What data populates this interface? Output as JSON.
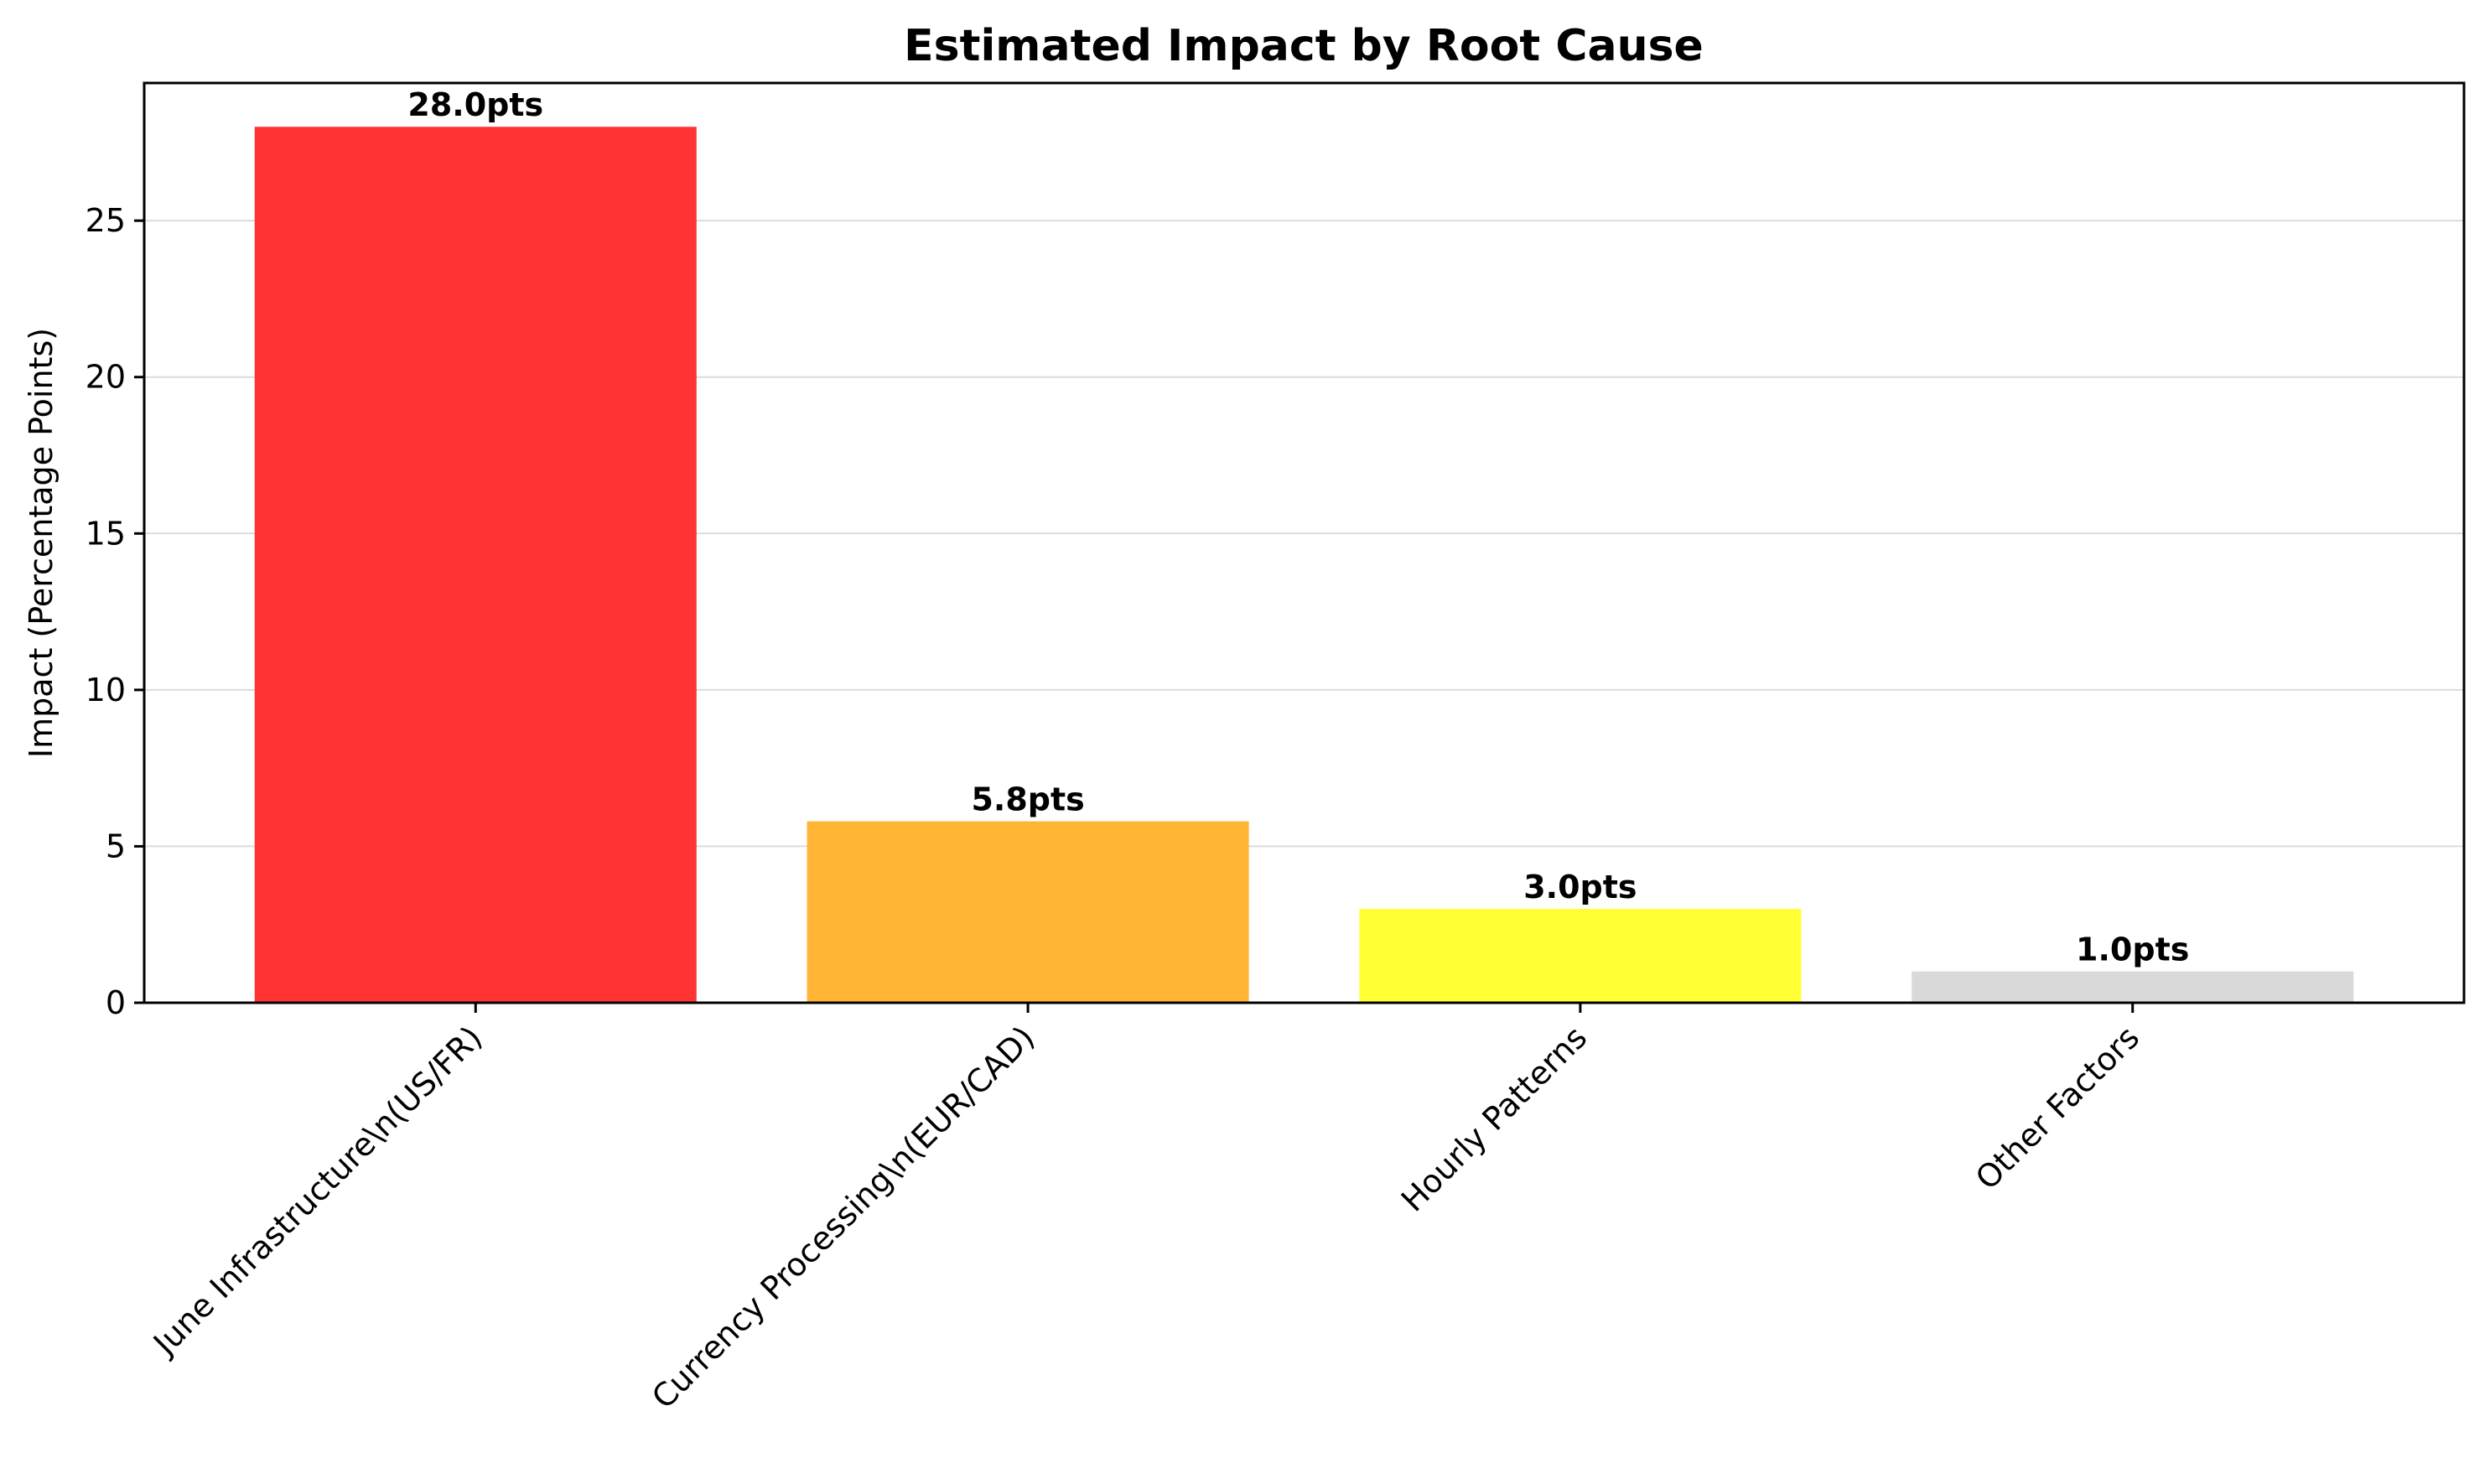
{
  "chart_data": {
    "type": "bar",
    "title": "Estimated Impact by Root Cause",
    "xlabel": "",
    "ylabel": "Impact (Percentage Points)",
    "categories": [
      "June Infrastructure\\n(US/FR)",
      "Currency Processing\\n(EUR/CAD)",
      "Hourly Patterns",
      "Other Factors"
    ],
    "values": [
      28.0,
      5.8,
      3.0,
      1.0
    ],
    "data_labels": [
      "28.0pts",
      "5.8pts",
      "3.0pts",
      "1.0pts"
    ],
    "colors": [
      "#ff3333",
      "#ffb533",
      "#ffff33",
      "#d9d9d9"
    ],
    "ylim": [
      0,
      29.4
    ],
    "yticks": [
      0,
      5,
      10,
      15,
      20,
      25
    ],
    "grid": "y-only",
    "x_tick_rotation": 45
  }
}
